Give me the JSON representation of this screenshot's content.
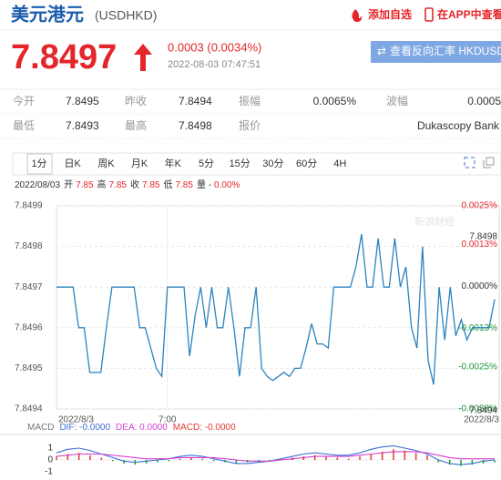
{
  "header": {
    "title": "美元港元",
    "code": "(USDHKD)",
    "actions": [
      "添加自选",
      "在APP中查看"
    ]
  },
  "quote": {
    "price": "7.8497",
    "change": "0.0003 (0.0034%)",
    "time": "2022-08-03 07:47:51",
    "reverse_button": "查看反向汇率 HKDUSD"
  },
  "stats": {
    "rows": [
      [
        {
          "label": "今开",
          "value": "7.8495"
        },
        {
          "label": "昨收",
          "value": "7.8494"
        },
        {
          "label": "振幅",
          "value": "0.0065%"
        },
        {
          "label": "波幅",
          "value": "0.0005"
        }
      ],
      [
        {
          "label": "最低",
          "value": "7.8493"
        },
        {
          "label": "最高",
          "value": "7.8498"
        },
        {
          "label": "报价",
          "value": "Dukascopy Bank"
        }
      ]
    ]
  },
  "tabs": [
    "1分",
    "日K",
    "周K",
    "月K",
    "年K",
    "5分",
    "15分",
    "30分",
    "60分",
    "4H"
  ],
  "summary": {
    "date": "2022/08/03",
    "items": [
      {
        "label": "开",
        "value": "7.85"
      },
      {
        "label": "高",
        "value": "7.85"
      },
      {
        "label": "收",
        "value": "7.85"
      },
      {
        "label": "低",
        "value": "7.85"
      },
      {
        "label": "量 -",
        "value": "0.00%"
      }
    ]
  },
  "watermark": "新浪财经",
  "chart_data": [
    {
      "type": "line",
      "color": "#2b83c0",
      "categories": [
        "2022/8/3",
        null,
        null,
        null,
        null,
        null,
        null,
        null,
        null,
        null,
        null,
        null,
        null,
        null,
        null,
        null,
        null,
        null,
        null,
        null,
        "7:00",
        null,
        null,
        null,
        null,
        null,
        null,
        null,
        null,
        null,
        null,
        null,
        null,
        null,
        null,
        null,
        null,
        null,
        null,
        null,
        null,
        null,
        null,
        null,
        null,
        null,
        null,
        null,
        null,
        null,
        null,
        null,
        null,
        null,
        null,
        null,
        null,
        null,
        null,
        null,
        null,
        null,
        null,
        null,
        null,
        null,
        null,
        null,
        null,
        null,
        null,
        null,
        null,
        null,
        null,
        null,
        null,
        null,
        null,
        "2022/8/3"
      ],
      "values": [
        7.8497,
        7.8497,
        7.8497,
        7.8497,
        7.8496,
        7.8496,
        7.84949,
        7.84949,
        7.84949,
        7.8496,
        7.8497,
        7.8497,
        7.8497,
        7.8497,
        7.8497,
        7.8496,
        7.8496,
        7.84955,
        7.8495,
        7.84948,
        7.8497,
        7.8497,
        7.8497,
        7.8497,
        7.84953,
        7.84963,
        7.8497,
        7.8496,
        7.8497,
        7.8496,
        7.8496,
        7.8497,
        7.8496,
        7.84948,
        7.8496,
        7.8496,
        7.8497,
        7.8495,
        7.84948,
        7.84947,
        7.84948,
        7.84949,
        7.84948,
        7.8495,
        7.8495,
        7.84955,
        7.84961,
        7.84956,
        7.84956,
        7.84955,
        7.8497,
        7.8497,
        7.8497,
        7.8497,
        7.84975,
        7.84983,
        7.8497,
        7.8497,
        7.84982,
        7.8497,
        7.8497,
        7.84982,
        7.8497,
        7.84975,
        7.8496,
        7.84955,
        7.8498,
        7.84952,
        7.84946,
        7.8497,
        7.84957,
        7.8497,
        7.84958,
        7.84962,
        7.84957,
        7.8496,
        7.8496,
        7.8496,
        7.8496,
        7.84967
      ],
      "ylim": [
        7.8494,
        7.8499
      ],
      "yticks": [
        7.8494,
        7.8495,
        7.8496,
        7.8497,
        7.8498,
        7.8499
      ],
      "y2lim": [
        -0.0038,
        0.0025
      ],
      "y2ticks": [
        {
          "value": -0.0038,
          "label": "-0.0038%"
        },
        {
          "value": -0.0025,
          "label": "-0.0025%"
        },
        {
          "value": -0.0013,
          "label": "-0.0013%"
        },
        {
          "value": 0,
          "label": "0.0000%"
        },
        {
          "value": 0.0013,
          "label": "0.0013%"
        },
        {
          "value": 0.0025,
          "label": "0.0025%"
        }
      ],
      "annotations": [
        "7.8498",
        "7.8494"
      ],
      "grid": true
    },
    {
      "type": "macd",
      "title": "MACD",
      "ylim": [
        -1.3,
        2.1
      ],
      "yticks": [
        -1,
        0,
        1
      ],
      "series": [
        {
          "name": "DIF: -0.0000",
          "color": "#3d6fd6",
          "values": [
            0.6,
            0.9,
            1.0,
            0.8,
            0.5,
            0.2,
            -0.1,
            -0.2,
            -0.1,
            0.0,
            0.1,
            0.3,
            0.4,
            0.3,
            0.1,
            -0.1,
            -0.3,
            -0.3,
            -0.2,
            -0.1,
            0.1,
            0.3,
            0.5,
            0.6,
            0.5,
            0.4,
            0.4,
            0.6,
            0.9,
            1.1,
            1.2,
            1.0,
            0.8,
            0.5,
            0.0,
            -0.3,
            -0.4,
            -0.3,
            -0.1,
            0.0
          ]
        },
        {
          "name": "DEA: 0.0000",
          "color": "#d63fd2",
          "values": [
            0.3,
            0.4,
            0.5,
            0.5,
            0.5,
            0.4,
            0.3,
            0.2,
            0.1,
            0.1,
            0.1,
            0.2,
            0.2,
            0.2,
            0.2,
            0.1,
            0.0,
            -0.1,
            -0.1,
            -0.1,
            0.0,
            0.1,
            0.2,
            0.3,
            0.3,
            0.3,
            0.3,
            0.4,
            0.5,
            0.6,
            0.7,
            0.7,
            0.7,
            0.6,
            0.4,
            0.2,
            0.1,
            0.1,
            0.1,
            0.1
          ]
        },
        {
          "name": "MACD: -0.0000",
          "color": "#e03c31",
          "bars": true,
          "values": [
            0.3,
            0.5,
            0.6,
            0.4,
            0.2,
            -0.1,
            -0.3,
            -0.4,
            -0.3,
            -0.2,
            -0.1,
            0.1,
            0.2,
            0.1,
            -0.1,
            -0.2,
            -0.3,
            -0.2,
            -0.1,
            -0.1,
            0.1,
            0.2,
            0.3,
            0.4,
            0.3,
            0.2,
            0.1,
            0.3,
            0.5,
            0.7,
            0.9,
            0.8,
            0.6,
            0.4,
            -0.2,
            -0.4,
            -0.5,
            -0.4,
            -0.3,
            -0.2
          ]
        }
      ]
    }
  ]
}
